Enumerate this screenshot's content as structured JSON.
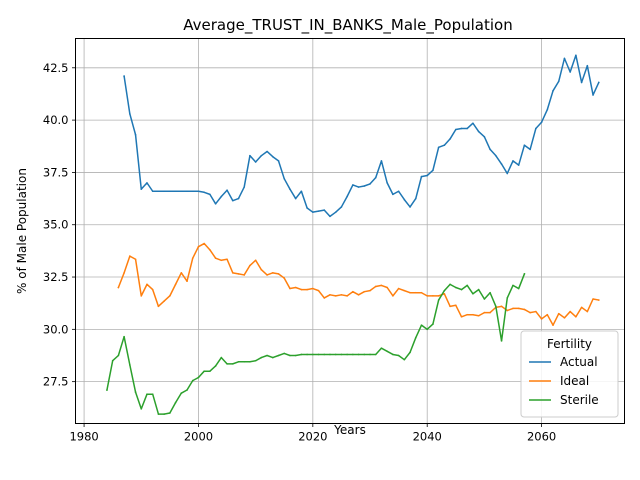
{
  "chart_data": {
    "type": "line",
    "title": "Average_TRUST_IN_BANKS_Male_Population",
    "xlabel": "Years",
    "ylabel": "% of Male Population",
    "xlim": [
      1978.5,
      2074.5
    ],
    "ylim": [
      25.5,
      43.9
    ],
    "xticks": [
      1980,
      2000,
      2020,
      2040,
      2060
    ],
    "xtick_labels": [
      "1980",
      "2000",
      "2020",
      "2040",
      "2060"
    ],
    "yticks": [
      27.5,
      30.0,
      32.5,
      35.0,
      37.5,
      40.0,
      42.5
    ],
    "ytick_labels": [
      "27.5",
      "30.0",
      "32.5",
      "35.0",
      "37.5",
      "40.0",
      "42.5"
    ],
    "grid": true,
    "legend": {
      "title": "Fertility",
      "position": "bottom-right"
    },
    "series": [
      {
        "name": "Actual",
        "color": "#1f77b4",
        "x": [
          1987,
          1988,
          1989,
          1990,
          1991,
          1992,
          1993,
          1994,
          1995,
          1996,
          1997,
          1998,
          1999,
          2000,
          2001,
          2002,
          2003,
          2004,
          2005,
          2006,
          2007,
          2008,
          2009,
          2010,
          2011,
          2012,
          2013,
          2014,
          2015,
          2016,
          2017,
          2018,
          2019,
          2020,
          2021,
          2022,
          2023,
          2024,
          2025,
          2026,
          2027,
          2028,
          2029,
          2030,
          2031,
          2032,
          2033,
          2034,
          2035,
          2036,
          2037,
          2038,
          2039,
          2040,
          2041,
          2042,
          2043,
          2044,
          2045,
          2046,
          2047,
          2048,
          2049,
          2050,
          2051,
          2052,
          2053,
          2054,
          2055,
          2056,
          2057,
          2058,
          2059,
          2060,
          2061,
          2062,
          2063,
          2064,
          2065,
          2066,
          2067,
          2068,
          2069,
          2070
        ],
        "values": [
          42.1,
          40.3,
          39.3,
          36.7,
          37.0,
          36.6,
          36.6,
          36.6,
          36.6,
          36.6,
          36.6,
          36.6,
          36.6,
          36.6,
          36.55,
          36.45,
          36.0,
          36.35,
          36.65,
          36.15,
          36.25,
          36.8,
          38.3,
          38.0,
          38.3,
          38.5,
          38.25,
          38.05,
          37.2,
          36.7,
          36.25,
          36.6,
          35.8,
          35.6,
          35.65,
          35.7,
          35.4,
          35.6,
          35.85,
          36.35,
          36.9,
          36.8,
          36.85,
          36.95,
          37.25,
          38.05,
          37.0,
          36.45,
          36.6,
          36.2,
          35.85,
          36.25,
          37.3,
          37.35,
          37.6,
          38.7,
          38.8,
          39.1,
          39.55,
          39.6,
          39.6,
          39.85,
          39.45,
          39.2,
          38.6,
          38.3,
          37.9,
          37.45,
          38.05,
          37.85,
          38.8,
          38.6,
          39.6,
          39.9,
          40.5,
          41.4,
          41.85,
          42.95,
          42.3,
          43.1,
          41.8,
          42.6,
          41.2,
          41.8
        ]
      },
      {
        "name": "Ideal",
        "color": "#ff7f0e",
        "x": [
          1986,
          1987,
          1988,
          1989,
          1990,
          1991,
          1992,
          1993,
          1994,
          1995,
          1996,
          1997,
          1998,
          1999,
          2000,
          2001,
          2002,
          2003,
          2004,
          2005,
          2006,
          2007,
          2008,
          2009,
          2010,
          2011,
          2012,
          2013,
          2014,
          2015,
          2016,
          2017,
          2018,
          2019,
          2020,
          2021,
          2022,
          2023,
          2024,
          2025,
          2026,
          2027,
          2028,
          2029,
          2030,
          2031,
          2032,
          2033,
          2034,
          2035,
          2036,
          2037,
          2038,
          2039,
          2040,
          2041,
          2042,
          2043,
          2044,
          2045,
          2046,
          2047,
          2048,
          2049,
          2050,
          2051,
          2052,
          2053,
          2054,
          2055,
          2056,
          2057,
          2058,
          2059,
          2060,
          2061,
          2062,
          2063,
          2064,
          2065,
          2066,
          2067,
          2068,
          2069,
          2070
        ],
        "values": [
          32.0,
          32.7,
          33.5,
          33.35,
          31.6,
          32.15,
          31.9,
          31.1,
          31.35,
          31.6,
          32.15,
          32.7,
          32.3,
          33.4,
          33.95,
          34.1,
          33.8,
          33.4,
          33.3,
          33.35,
          32.7,
          32.65,
          32.6,
          33.05,
          33.3,
          32.85,
          32.6,
          32.7,
          32.65,
          32.45,
          31.95,
          32.0,
          31.9,
          31.9,
          31.95,
          31.85,
          31.5,
          31.65,
          31.6,
          31.65,
          31.6,
          31.8,
          31.65,
          31.8,
          31.85,
          32.05,
          32.1,
          32.0,
          31.6,
          31.95,
          31.85,
          31.75,
          31.75,
          31.75,
          31.6,
          31.6,
          31.6,
          31.7,
          31.1,
          31.15,
          30.6,
          30.7,
          30.7,
          30.65,
          30.8,
          30.8,
          31.05,
          31.1,
          30.9,
          31.0,
          31.0,
          30.95,
          30.8,
          30.85,
          30.5,
          30.7,
          30.2,
          30.75,
          30.55,
          30.85,
          30.6,
          31.05,
          30.85,
          31.45,
          31.4
        ]
      },
      {
        "name": "Sterile",
        "color": "#2ca02c",
        "x": [
          1984,
          1985,
          1986,
          1987,
          1988,
          1989,
          1990,
          1991,
          1992,
          1993,
          1994,
          1995,
          1996,
          1997,
          1998,
          1999,
          2000,
          2001,
          2002,
          2003,
          2004,
          2005,
          2006,
          2007,
          2008,
          2009,
          2010,
          2011,
          2012,
          2013,
          2014,
          2015,
          2016,
          2017,
          2018,
          2019,
          2020,
          2021,
          2022,
          2023,
          2024,
          2025,
          2026,
          2027,
          2028,
          2029,
          2030,
          2031,
          2032,
          2033,
          2034,
          2035,
          2036,
          2037,
          2038,
          2039,
          2040,
          2041,
          2042,
          2043,
          2044,
          2045,
          2046,
          2047,
          2048,
          2049,
          2050,
          2051,
          2052,
          2053,
          2054,
          2055,
          2056,
          2057
        ],
        "values": [
          27.1,
          28.5,
          28.75,
          29.65,
          28.3,
          27.0,
          26.2,
          26.9,
          26.9,
          25.95,
          25.95,
          26.0,
          26.5,
          26.95,
          27.1,
          27.55,
          27.7,
          28.0,
          28.0,
          28.25,
          28.65,
          28.35,
          28.35,
          28.45,
          28.45,
          28.45,
          28.5,
          28.65,
          28.75,
          28.65,
          28.75,
          28.85,
          28.75,
          28.75,
          28.8,
          28.8,
          28.8,
          28.8,
          28.8,
          28.8,
          28.8,
          28.8,
          28.8,
          28.8,
          28.8,
          28.8,
          28.8,
          28.8,
          29.1,
          28.95,
          28.8,
          28.75,
          28.55,
          28.9,
          29.6,
          30.2,
          30.0,
          30.25,
          31.4,
          31.85,
          32.15,
          32.0,
          31.9,
          32.1,
          31.7,
          31.9,
          31.45,
          31.75,
          31.1,
          29.45,
          31.5,
          32.1,
          31.95,
          32.65
        ]
      }
    ]
  }
}
